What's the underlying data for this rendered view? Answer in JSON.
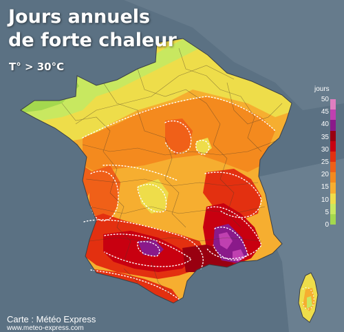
{
  "title_line1": "Jours annuels",
  "title_line2": "de forte chaleur",
  "subtitle": "T° > 30°C",
  "legend": {
    "title": "jours",
    "labels": [
      "50",
      "45",
      "40",
      "35",
      "30",
      "25",
      "20",
      "15",
      "10",
      "5",
      "0"
    ],
    "colors": [
      "#e07ec0",
      "#c040b0",
      "#8a1a8a",
      "#990010",
      "#c80010",
      "#e33010",
      "#f06018",
      "#f48a1e",
      "#f6ae30",
      "#eedd4a",
      "#c8e860",
      "#a4d84e"
    ]
  },
  "credit": "Carte : Météo Express",
  "url": "www.meteo-express.com"
}
